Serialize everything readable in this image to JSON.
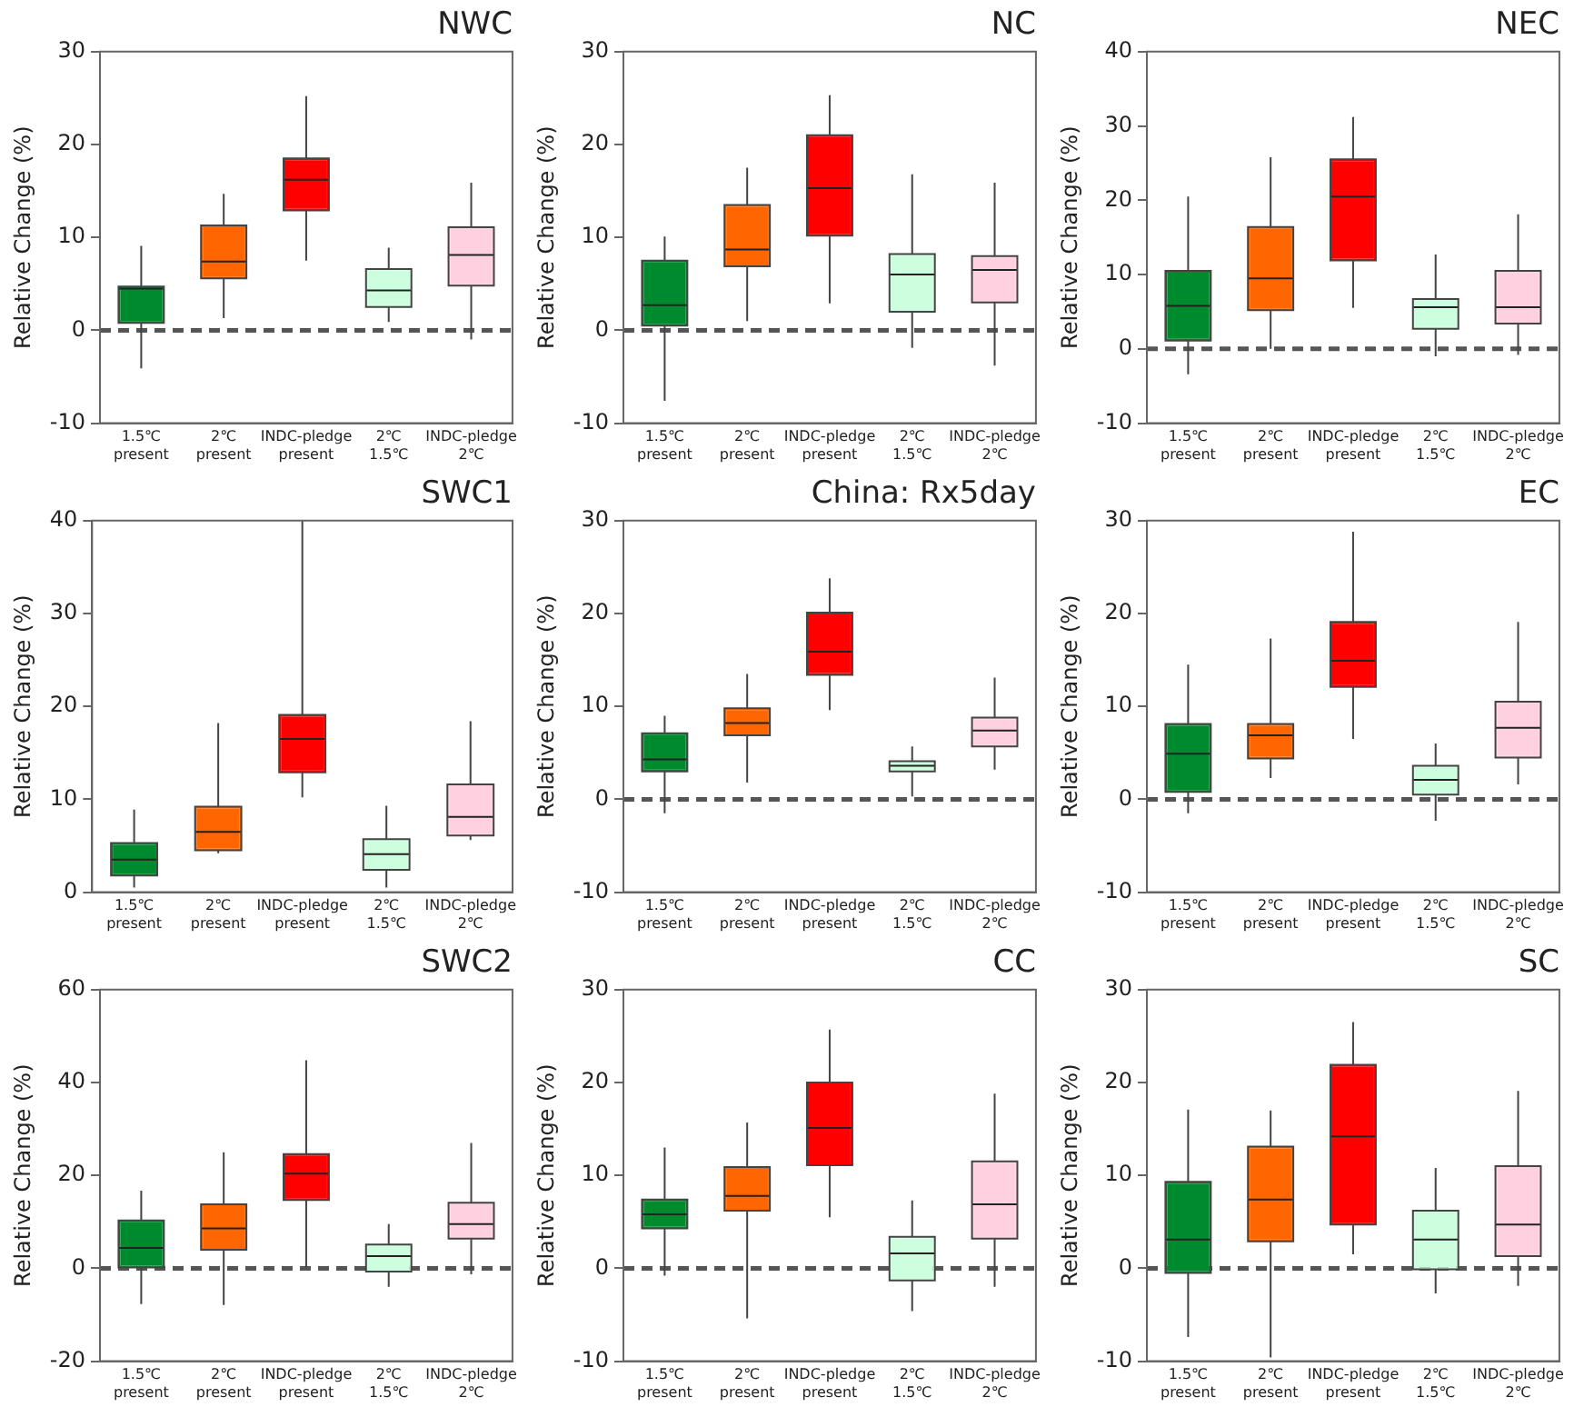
{
  "chart_data": [
    {
      "type": "box",
      "title": "NWC",
      "ylabel": "Relative Change (%)",
      "categories": [
        "1.5℃\npresent",
        "2℃\npresent",
        "INDC-pledge\npresent",
        "2℃\n1.5℃",
        "INDC-pledge\n2℃"
      ],
      "colors": [
        "#008a2e",
        "#ff6600",
        "#ff0000",
        "#ccffdd",
        "#ffd0e0"
      ],
      "ylim": [
        -10,
        30
      ],
      "yticks": [
        -10,
        0,
        10,
        20,
        30
      ],
      "grid": false,
      "legend": false,
      "ref_lines": [
        {
          "axis": "y",
          "value": 0,
          "color": "#555555",
          "line_style": "dashed"
        }
      ],
      "boxes": [
        {
          "low": -4.1,
          "q1": 0.8,
          "median": 4.5,
          "q3": 4.7,
          "high": 9.1
        },
        {
          "low": 1.3,
          "q1": 5.6,
          "median": 7.4,
          "q3": 11.3,
          "high": 14.7
        },
        {
          "low": 7.5,
          "q1": 12.9,
          "median": 16.2,
          "q3": 18.5,
          "high": 25.2
        },
        {
          "low": 0.9,
          "q1": 2.5,
          "median": 4.3,
          "q3": 6.6,
          "high": 8.9
        },
        {
          "low": -1.0,
          "q1": 4.8,
          "median": 8.1,
          "q3": 11.1,
          "high": 15.9
        }
      ]
    },
    {
      "type": "box",
      "title": "NC",
      "ylabel": "Relative Change (%)",
      "categories": [
        "1.5℃\npresent",
        "2℃\npresent",
        "INDC-pledge\npresent",
        "2℃\n1.5℃",
        "INDC-pledge\n2℃"
      ],
      "colors": [
        "#008a2e",
        "#ff6600",
        "#ff0000",
        "#ccffdd",
        "#ffd0e0"
      ],
      "ylim": [
        -10,
        30
      ],
      "yticks": [
        -10,
        0,
        10,
        20,
        30
      ],
      "grid": false,
      "legend": false,
      "ref_lines": [
        {
          "axis": "y",
          "value": 0,
          "color": "#555555",
          "line_style": "dashed"
        }
      ],
      "boxes": [
        {
          "low": -7.6,
          "q1": 0.5,
          "median": 2.7,
          "q3": 7.5,
          "high": 10.1
        },
        {
          "low": 1.0,
          "q1": 6.9,
          "median": 8.7,
          "q3": 13.5,
          "high": 17.5
        },
        {
          "low": 2.9,
          "q1": 10.2,
          "median": 15.3,
          "q3": 21.0,
          "high": 25.3
        },
        {
          "low": -1.9,
          "q1": 2.0,
          "median": 6.0,
          "q3": 8.2,
          "high": 16.8
        },
        {
          "low": -3.8,
          "q1": 3.0,
          "median": 6.5,
          "q3": 8.0,
          "high": 15.9
        }
      ]
    },
    {
      "type": "box",
      "title": "NEC",
      "ylabel": "Relative Change (%)",
      "categories": [
        "1.5℃\npresent",
        "2℃\npresent",
        "INDC-pledge\npresent",
        "2℃\n1.5℃",
        "INDC-pledge\n2℃"
      ],
      "colors": [
        "#008a2e",
        "#ff6600",
        "#ff0000",
        "#ccffdd",
        "#ffd0e0"
      ],
      "ylim": [
        -10,
        40
      ],
      "yticks": [
        -10,
        0,
        10,
        20,
        30,
        40
      ],
      "grid": false,
      "legend": false,
      "ref_lines": [
        {
          "axis": "y",
          "value": 0,
          "color": "#555555",
          "line_style": "dashed"
        }
      ],
      "boxes": [
        {
          "low": -3.4,
          "q1": 1.1,
          "median": 5.8,
          "q3": 10.5,
          "high": 20.5
        },
        {
          "low": 0,
          "q1": 5.2,
          "median": 9.5,
          "q3": 16.4,
          "high": 25.8
        },
        {
          "low": 5.5,
          "q1": 11.9,
          "median": 20.5,
          "q3": 25.5,
          "high": 31.2
        },
        {
          "low": -1.0,
          "q1": 2.7,
          "median": 5.6,
          "q3": 6.7,
          "high": 12.7
        },
        {
          "low": -0.8,
          "q1": 3.4,
          "median": 5.6,
          "q3": 10.5,
          "high": 18.1
        }
      ]
    },
    {
      "type": "box",
      "title": "SWC1",
      "ylabel": "Relative Change (%)",
      "categories": [
        "1.5℃\npresent",
        "2℃\npresent",
        "INDC-pledge\npresent",
        "2℃\n1.5℃",
        "INDC-pledge\n2℃"
      ],
      "colors": [
        "#008a2e",
        "#ff6600",
        "#ff0000",
        "#ccffdd",
        "#ffd0e0"
      ],
      "ylim": [
        0,
        40
      ],
      "yticks": [
        0,
        10,
        20,
        30,
        40
      ],
      "grid": false,
      "legend": false,
      "boxes": [
        {
          "low": 0.5,
          "q1": 1.8,
          "median": 3.5,
          "q3": 5.3,
          "high": 8.9
        },
        {
          "low": 4.2,
          "q1": 4.5,
          "median": 6.5,
          "q3": 9.2,
          "high": 18.2
        },
        {
          "low": 10.2,
          "q1": 12.9,
          "median": 16.5,
          "q3": 19.1,
          "high": 40
        },
        {
          "low": 0.5,
          "q1": 2.4,
          "median": 4.1,
          "q3": 5.7,
          "high": 9.3
        },
        {
          "low": 5.6,
          "q1": 6.1,
          "median": 8.1,
          "q3": 11.6,
          "high": 18.4
        }
      ]
    },
    {
      "type": "box",
      "title": "China: Rx5day",
      "ylabel": "Relative Change (%)",
      "categories": [
        "1.5℃\npresent",
        "2℃\npresent",
        "INDC-pledge\npresent",
        "2℃\n1.5℃",
        "INDC-pledge\n2℃"
      ],
      "colors": [
        "#008a2e",
        "#ff6600",
        "#ff0000",
        "#ccffdd",
        "#ffd0e0"
      ],
      "ylim": [
        -10,
        30
      ],
      "yticks": [
        -10,
        0,
        10,
        20,
        30
      ],
      "grid": false,
      "legend": false,
      "ref_lines": [
        {
          "axis": "y",
          "value": 0,
          "color": "#555555",
          "line_style": "dashed"
        }
      ],
      "boxes": [
        {
          "low": -1.5,
          "q1": 3.0,
          "median": 4.3,
          "q3": 7.1,
          "high": 9.0
        },
        {
          "low": 1.8,
          "q1": 6.9,
          "median": 8.2,
          "q3": 9.8,
          "high": 13.5
        },
        {
          "low": 9.6,
          "q1": 13.4,
          "median": 15.9,
          "q3": 20.1,
          "high": 23.8
        },
        {
          "low": 0.3,
          "q1": 3.0,
          "median": 3.6,
          "q3": 4.1,
          "high": 5.7
        },
        {
          "low": 3.2,
          "q1": 5.7,
          "median": 7.4,
          "q3": 8.8,
          "high": 13.1
        }
      ]
    },
    {
      "type": "box",
      "title": "EC",
      "ylabel": "Relative Change (%)",
      "categories": [
        "1.5℃\npresent",
        "2℃\npresent",
        "INDC-pledge\npresent",
        "2℃\n1.5℃",
        "INDC-pledge\n2℃"
      ],
      "colors": [
        "#008a2e",
        "#ff6600",
        "#ff0000",
        "#ccffdd",
        "#ffd0e0"
      ],
      "ylim": [
        -10,
        30
      ],
      "yticks": [
        -10,
        0,
        10,
        20,
        30
      ],
      "grid": false,
      "legend": false,
      "ref_lines": [
        {
          "axis": "y",
          "value": 0,
          "color": "#555555",
          "line_style": "dashed"
        }
      ],
      "boxes": [
        {
          "low": -1.5,
          "q1": 0.8,
          "median": 4.9,
          "q3": 8.1,
          "high": 14.5
        },
        {
          "low": 2.3,
          "q1": 4.4,
          "median": 6.9,
          "q3": 8.1,
          "high": 17.3
        },
        {
          "low": 6.5,
          "q1": 12.1,
          "median": 14.9,
          "q3": 19.1,
          "high": 28.8
        },
        {
          "low": -2.3,
          "q1": 0.5,
          "median": 2.1,
          "q3": 3.6,
          "high": 6.0
        },
        {
          "low": 1.6,
          "q1": 4.5,
          "median": 7.7,
          "q3": 10.5,
          "high": 19.1
        }
      ]
    },
    {
      "type": "box",
      "title": "SWC2",
      "ylabel": "Relative Change (%)",
      "categories": [
        "1.5℃\npresent",
        "2℃\npresent",
        "INDC-pledge\npresent",
        "2℃\n1.5℃",
        "INDC-pledge\n2℃"
      ],
      "colors": [
        "#008a2e",
        "#ff6600",
        "#ff0000",
        "#ccffdd",
        "#ffd0e0"
      ],
      "ylim": [
        -20,
        60
      ],
      "yticks": [
        -20,
        0,
        20,
        40,
        60
      ],
      "grid": false,
      "legend": false,
      "ref_lines": [
        {
          "axis": "y",
          "value": 0,
          "color": "#555555",
          "line_style": "dashed"
        }
      ],
      "boxes": [
        {
          "low": -7.7,
          "q1": 0.2,
          "median": 4.4,
          "q3": 10.3,
          "high": 16.7
        },
        {
          "low": -7.9,
          "q1": 4.0,
          "median": 8.6,
          "q3": 13.8,
          "high": 25
        },
        {
          "low": 0.2,
          "q1": 14.7,
          "median": 20.4,
          "q3": 24.6,
          "high": 44.8
        },
        {
          "low": -4.0,
          "q1": -0.7,
          "median": 2.6,
          "q3": 5.1,
          "high": 9.5
        },
        {
          "low": -1.3,
          "q1": 6.4,
          "median": 9.5,
          "q3": 14.1,
          "high": 27
        }
      ]
    },
    {
      "type": "box",
      "title": "CC",
      "ylabel": "Relative Change (%)",
      "categories": [
        "1.5℃\npresent",
        "2℃\npresent",
        "INDC-pledge\npresent",
        "2℃\n1.5℃",
        "INDC-pledge\n2℃"
      ],
      "colors": [
        "#008a2e",
        "#ff6600",
        "#ff0000",
        "#ccffdd",
        "#ffd0e0"
      ],
      "ylim": [
        -10,
        30
      ],
      "yticks": [
        -10,
        0,
        10,
        20,
        30
      ],
      "grid": false,
      "legend": false,
      "ref_lines": [
        {
          "axis": "y",
          "value": 0,
          "color": "#555555",
          "line_style": "dashed"
        }
      ],
      "boxes": [
        {
          "low": -0.8,
          "q1": 4.3,
          "median": 5.8,
          "q3": 7.4,
          "high": 13.0
        },
        {
          "low": -5.4,
          "q1": 6.2,
          "median": 7.8,
          "q3": 10.9,
          "high": 15.7
        },
        {
          "low": 5.5,
          "q1": 11.1,
          "median": 15.1,
          "q3": 20.0,
          "high": 25.7
        },
        {
          "low": -4.6,
          "q1": -1.3,
          "median": 1.6,
          "q3": 3.4,
          "high": 7.3
        },
        {
          "low": -2.0,
          "q1": 3.2,
          "median": 6.9,
          "q3": 11.5,
          "high": 18.8
        }
      ]
    },
    {
      "type": "box",
      "title": "SC",
      "ylabel": "Relative Change (%)",
      "categories": [
        "1.5℃\npresent",
        "2℃\npresent",
        "INDC-pledge\npresent",
        "2℃\n1.5℃",
        "INDC-pledge\n2℃"
      ],
      "colors": [
        "#008a2e",
        "#ff6600",
        "#ff0000",
        "#ccffdd",
        "#ffd0e0"
      ],
      "ylim": [
        -10,
        30
      ],
      "yticks": [
        -10,
        0,
        10,
        20,
        30
      ],
      "grid": false,
      "legend": false,
      "ref_lines": [
        {
          "axis": "y",
          "value": 0,
          "color": "#555555",
          "line_style": "dashed"
        }
      ],
      "boxes": [
        {
          "low": -7.4,
          "q1": -0.5,
          "median": 3.1,
          "q3": 9.3,
          "high": 17.1
        },
        {
          "low": -9.6,
          "q1": 2.9,
          "median": 7.4,
          "q3": 13.1,
          "high": 17.0
        },
        {
          "low": 1.5,
          "q1": 4.7,
          "median": 14.2,
          "q3": 21.9,
          "high": 26.5
        },
        {
          "low": -2.7,
          "q1": -0.1,
          "median": 3.1,
          "q3": 6.2,
          "high": 10.8
        },
        {
          "low": -1.9,
          "q1": 1.3,
          "median": 4.7,
          "q3": 11.0,
          "high": 19.1
        }
      ]
    }
  ]
}
